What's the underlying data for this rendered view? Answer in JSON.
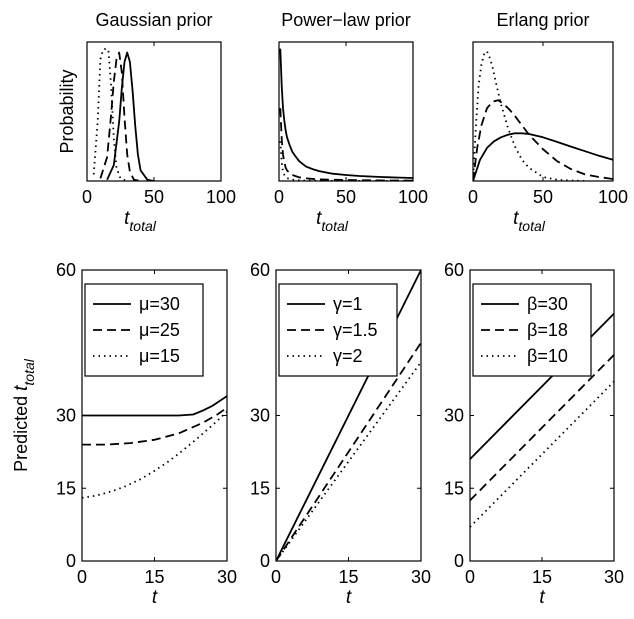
{
  "chart_data": [
    {
      "type": "line",
      "title": "Gaussian prior",
      "ylabel": "Probability",
      "xlabel": {
        "main": "t",
        "sub": "total"
      },
      "xlim": [
        0,
        100
      ],
      "xticks": [
        "0",
        "50",
        "100"
      ],
      "yticks": [],
      "series": [
        {
          "style": "dotted",
          "x": [
            5,
            8,
            10,
            12,
            14,
            16,
            18,
            20,
            22,
            25,
            30
          ],
          "y": [
            0.05,
            0.45,
            0.92,
            0.99,
            1.0,
            0.99,
            0.72,
            0.32,
            0.1,
            0.02,
            0
          ]
        },
        {
          "style": "dashed",
          "x": [
            10,
            15,
            18,
            20,
            22,
            24,
            26,
            28,
            30,
            32,
            35,
            40
          ],
          "y": [
            0.02,
            0.18,
            0.5,
            0.75,
            0.92,
            0.97,
            0.82,
            0.48,
            0.2,
            0.07,
            0.01,
            0
          ]
        },
        {
          "style": "solid",
          "x": [
            15,
            20,
            24,
            26,
            28,
            30,
            32,
            34,
            36,
            38,
            40,
            45,
            50
          ],
          "y": [
            0.01,
            0.12,
            0.45,
            0.7,
            0.9,
            0.97,
            0.9,
            0.68,
            0.42,
            0.2,
            0.08,
            0.01,
            0
          ]
        }
      ]
    },
    {
      "type": "line",
      "title": "Power−law prior",
      "ylabel": "",
      "xlabel": {
        "main": "t",
        "sub": "total"
      },
      "xlim": [
        0,
        100
      ],
      "xticks": [
        "0",
        "50",
        "100"
      ],
      "yticks": [],
      "series": [
        {
          "style": "solid",
          "x": [
            1,
            2,
            3,
            4,
            5,
            6,
            8,
            10,
            12,
            15,
            20,
            25,
            30,
            40,
            50,
            60,
            70,
            80,
            90,
            100
          ],
          "y": [
            1.0,
            0.72,
            0.55,
            0.45,
            0.38,
            0.33,
            0.27,
            0.22,
            0.19,
            0.15,
            0.11,
            0.09,
            0.075,
            0.055,
            0.045,
            0.038,
            0.033,
            0.029,
            0.026,
            0.023
          ]
        },
        {
          "style": "dashed",
          "x": [
            1,
            2,
            3,
            4,
            5,
            6,
            8,
            10,
            15,
            20,
            30,
            40,
            60,
            80,
            100
          ],
          "y": [
            0.55,
            0.32,
            0.2,
            0.14,
            0.1,
            0.08,
            0.06,
            0.045,
            0.028,
            0.02,
            0.012,
            0.009,
            0.006,
            0.004,
            0.003
          ]
        },
        {
          "style": "dotted",
          "x": [
            1,
            2,
            3,
            4,
            5,
            6,
            8,
            10,
            15,
            20,
            30,
            50,
            100
          ],
          "y": [
            0.3,
            0.14,
            0.07,
            0.045,
            0.03,
            0.022,
            0.014,
            0.01,
            0.005,
            0.003,
            0.002,
            0.001,
            0
          ]
        }
      ]
    },
    {
      "type": "line",
      "title": "Erlang prior",
      "ylabel": "",
      "xlabel": {
        "main": "t",
        "sub": "total"
      },
      "xlim": [
        0,
        100
      ],
      "xticks": [
        "0",
        "50",
        "100"
      ],
      "yticks": [],
      "series": [
        {
          "style": "solid",
          "x": [
            0,
            5,
            10,
            15,
            20,
            25,
            30,
            35,
            40,
            50,
            60,
            70,
            80,
            90,
            100
          ],
          "y": [
            0,
            0.16,
            0.25,
            0.3,
            0.33,
            0.35,
            0.36,
            0.36,
            0.355,
            0.33,
            0.295,
            0.26,
            0.225,
            0.19,
            0.16
          ]
        },
        {
          "style": "dashed",
          "x": [
            0,
            3,
            6,
            10,
            14,
            18,
            22,
            26,
            30,
            35,
            40,
            50,
            60,
            70,
            80,
            90,
            100
          ],
          "y": [
            0,
            0.25,
            0.42,
            0.55,
            0.6,
            0.61,
            0.58,
            0.54,
            0.49,
            0.42,
            0.35,
            0.24,
            0.15,
            0.09,
            0.05,
            0.03,
            0.015
          ]
        },
        {
          "style": "dotted",
          "x": [
            0,
            2,
            4,
            6,
            8,
            10,
            12,
            14,
            16,
            20,
            25,
            30,
            35,
            40,
            50,
            60,
            70,
            80
          ],
          "y": [
            0,
            0.4,
            0.72,
            0.88,
            0.96,
            0.98,
            0.93,
            0.86,
            0.76,
            0.58,
            0.4,
            0.26,
            0.16,
            0.1,
            0.03,
            0.01,
            0.003,
            0
          ]
        }
      ]
    },
    {
      "type": "line",
      "title": "",
      "ylabel": {
        "main": "Predicted t",
        "sub": "total"
      },
      "xlabel": {
        "main": "t",
        "sub": ""
      },
      "xlim": [
        0,
        30
      ],
      "ylim": [
        0,
        60
      ],
      "xticks": [
        "0",
        "15",
        "30"
      ],
      "yticks": [
        "0",
        "15",
        "30",
        "60"
      ],
      "ytick_values": [
        0,
        15,
        30,
        60
      ],
      "legend": [
        "μ=30",
        "μ=25",
        "μ=15"
      ],
      "series": [
        {
          "name": "μ=30",
          "style": "solid",
          "x": [
            0,
            5,
            10,
            15,
            20,
            23,
            25,
            27,
            30
          ],
          "y": [
            30,
            30,
            30,
            30,
            30,
            30.2,
            31,
            32,
            34
          ]
        },
        {
          "name": "μ=25",
          "style": "dashed",
          "x": [
            0,
            5,
            10,
            15,
            20,
            25,
            28,
            30
          ],
          "y": [
            24,
            24,
            24.3,
            25,
            26.3,
            28.5,
            30.2,
            31.6
          ]
        },
        {
          "name": "μ=15",
          "style": "dotted",
          "x": [
            0,
            3,
            6,
            9,
            12,
            15,
            18,
            21,
            24,
            27,
            30
          ],
          "y": [
            13,
            13.5,
            14.3,
            15.4,
            16.8,
            18.6,
            20.6,
            22.9,
            25.4,
            28,
            30.8
          ]
        }
      ]
    },
    {
      "type": "line",
      "title": "",
      "ylabel": "",
      "xlabel": {
        "main": "t",
        "sub": ""
      },
      "xlim": [
        0,
        30
      ],
      "ylim": [
        0,
        60
      ],
      "xticks": [
        "0",
        "15",
        "30"
      ],
      "yticks": [
        "0",
        "15",
        "30",
        "60"
      ],
      "ytick_values": [
        0,
        15,
        30,
        60
      ],
      "legend": [
        "γ=1",
        "γ=1.5",
        "γ=2"
      ],
      "series": [
        {
          "name": "γ=1",
          "style": "solid",
          "x": [
            0,
            30
          ],
          "y": [
            0,
            60
          ]
        },
        {
          "name": "γ=1.5",
          "style": "dashed",
          "x": [
            0,
            30
          ],
          "y": [
            0,
            45
          ]
        },
        {
          "name": "γ=2",
          "style": "dotted",
          "x": [
            0,
            30
          ],
          "y": [
            0,
            41
          ]
        }
      ]
    },
    {
      "type": "line",
      "title": "",
      "ylabel": "",
      "xlabel": {
        "main": "t",
        "sub": ""
      },
      "xlim": [
        0,
        30
      ],
      "ylim": [
        0,
        60
      ],
      "xticks": [
        "0",
        "15",
        "30"
      ],
      "yticks": [
        "0",
        "15",
        "30",
        "60"
      ],
      "ytick_values": [
        0,
        15,
        30,
        60
      ],
      "legend": [
        "β=30",
        "β=18",
        "β=10"
      ],
      "series": [
        {
          "name": "β=30",
          "style": "solid",
          "x": [
            0,
            30
          ],
          "y": [
            21,
            51
          ]
        },
        {
          "name": "β=18",
          "style": "dashed",
          "x": [
            0,
            30
          ],
          "y": [
            12.5,
            42.5
          ]
        },
        {
          "name": "β=10",
          "style": "dotted",
          "x": [
            0,
            30
          ],
          "y": [
            7,
            37
          ]
        }
      ]
    }
  ]
}
